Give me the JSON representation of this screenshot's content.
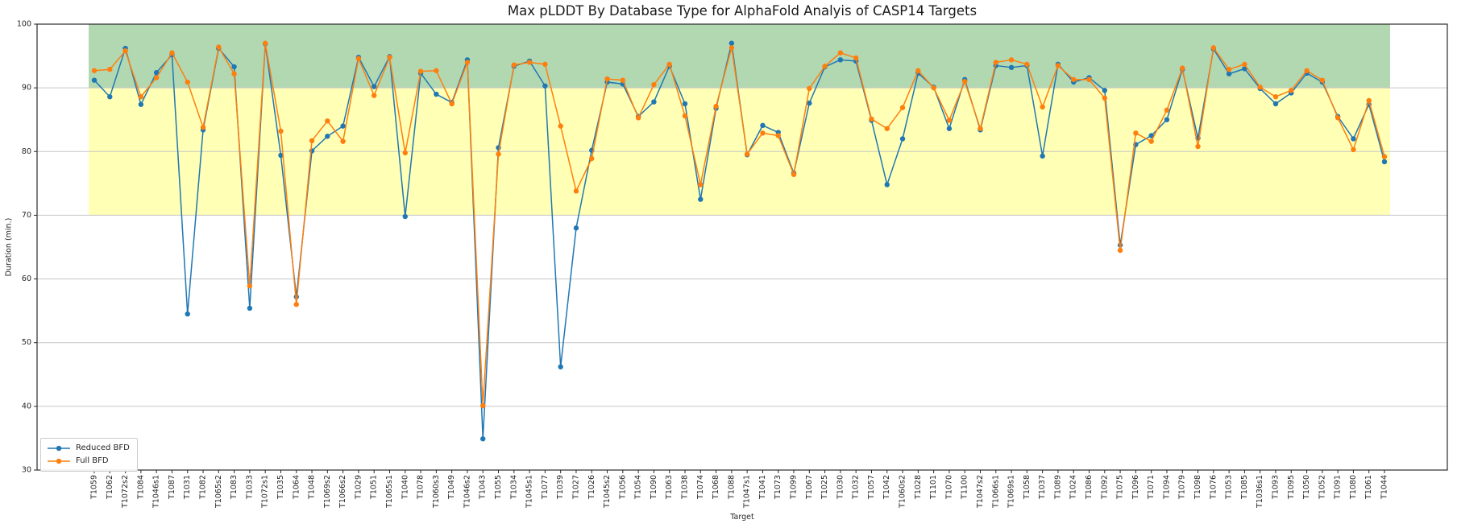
{
  "chart_data": {
    "type": "line",
    "title": "Max pLDDT By Database Type for AlphaFold Analyis of CASP14 Targets",
    "xlabel": "Target",
    "ylabel": "Duration (min.)",
    "ylim": [
      30,
      100
    ],
    "yticks": [
      30,
      40,
      50,
      60,
      70,
      80,
      90,
      100
    ],
    "grid": "horizontal",
    "legend_position": "lower-left",
    "bands": [
      {
        "range": [
          90,
          100
        ],
        "color": "#b2d8b2"
      },
      {
        "range": [
          70,
          90
        ],
        "color": "#ffffb5"
      }
    ],
    "categories": [
      "T1059",
      "T1062",
      "T1072s2",
      "T1084",
      "T1046s1",
      "T1087",
      "T1031",
      "T1082",
      "T1065s2",
      "T1083",
      "T1033",
      "T1072s1",
      "T1035",
      "T1064",
      "T1048",
      "T1069s2",
      "T1066s2",
      "T1029",
      "T1051",
      "T1065s1",
      "T1040",
      "T1078",
      "T1060s3",
      "T1049",
      "T1046s2",
      "T1043",
      "T1055",
      "T1034",
      "T1045s1",
      "T1077",
      "T1039",
      "T1027",
      "T1026",
      "T1045s2",
      "T1056",
      "T1054",
      "T1090",
      "T1063",
      "T1038",
      "T1074",
      "T1068",
      "T1088",
      "T1047s1",
      "T1041",
      "T1073",
      "T1099",
      "T1067",
      "T1025",
      "T1030",
      "T1032",
      "T1057",
      "T1042",
      "T1060s2",
      "T1028",
      "T1101",
      "T1070",
      "T1100",
      "T1047s2",
      "T1066s1",
      "T1069s1",
      "T1058",
      "T1037",
      "T1089",
      "T1024",
      "T1086",
      "T1092",
      "T1075",
      "T1096",
      "T1071",
      "T1094",
      "T1079",
      "T1098",
      "T1076",
      "T1053",
      "T1085",
      "T1036s1",
      "T1093",
      "T1095",
      "T1050",
      "T1052",
      "T1091",
      "T1080",
      "T1061",
      "T1044"
    ],
    "series": [
      {
        "name": "Reduced BFD",
        "color": "#1f77b4",
        "values": [
          91.2,
          88.6,
          96.2,
          87.4,
          92.4,
          95.2,
          54.5,
          83.4,
          96.2,
          93.3,
          55.4,
          96.9,
          79.4,
          57.2,
          80.1,
          82.4,
          84.0,
          94.8,
          90.2,
          94.9,
          69.8,
          92.3,
          89.0,
          87.7,
          94.4,
          34.9,
          80.6,
          93.4,
          94.2,
          90.3,
          46.2,
          68.0,
          80.2,
          90.9,
          90.6,
          85.5,
          87.8,
          93.4,
          87.5,
          72.5,
          86.8,
          97.0,
          79.5,
          84.1,
          83.0,
          76.6,
          87.6,
          93.3,
          94.4,
          94.2,
          84.9,
          74.8,
          82.0,
          92.3,
          90.1,
          83.6,
          91.3,
          83.4,
          93.5,
          93.2,
          93.5,
          79.3,
          93.7,
          90.9,
          91.6,
          89.6,
          65.3,
          81.1,
          82.5,
          85.0,
          92.9,
          82.1,
          96.1,
          92.2,
          93.0,
          89.9,
          87.5,
          89.2,
          92.3,
          90.9,
          85.5,
          82.0,
          87.4,
          78.4
        ]
      },
      {
        "name": "Full BFD",
        "color": "#ff7f0e",
        "values": [
          92.7,
          92.9,
          95.8,
          88.6,
          91.6,
          95.5,
          90.9,
          83.8,
          96.4,
          92.2,
          58.9,
          97.0,
          83.2,
          56.0,
          81.7,
          84.8,
          81.6,
          94.6,
          88.8,
          94.8,
          79.8,
          92.6,
          92.7,
          87.5,
          94.0,
          40.1,
          79.6,
          93.6,
          94.0,
          93.7,
          84.0,
          73.8,
          78.9,
          91.4,
          91.2,
          85.3,
          90.5,
          93.7,
          85.6,
          74.8,
          87.1,
          96.3,
          79.6,
          82.9,
          82.5,
          76.4,
          89.9,
          93.4,
          95.5,
          94.7,
          85.1,
          83.6,
          86.9,
          92.7,
          90.0,
          84.9,
          91.0,
          83.6,
          94.0,
          94.4,
          93.7,
          87.0,
          93.5,
          91.3,
          91.3,
          88.4,
          64.5,
          82.9,
          81.6,
          86.5,
          93.1,
          80.8,
          96.3,
          92.9,
          93.7,
          90.1,
          88.6,
          89.6,
          92.7,
          91.2,
          85.3,
          80.3,
          88.0,
          79.2
        ]
      }
    ]
  }
}
